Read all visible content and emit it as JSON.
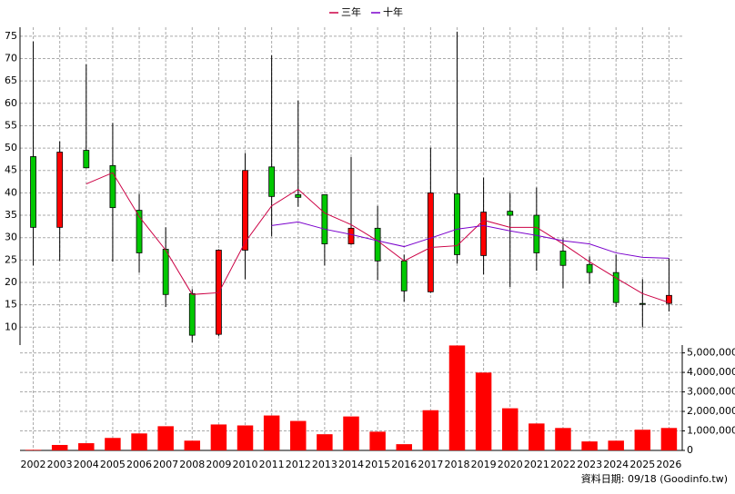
{
  "chart_data": {
    "type": "candlestick",
    "legend": [
      "三年",
      "十年"
    ],
    "categories": [
      "2002",
      "2003",
      "2004",
      "2005",
      "2006",
      "2007",
      "2008",
      "2009",
      "2010",
      "2011",
      "2012",
      "2013",
      "2014",
      "2015",
      "2016",
      "2017",
      "2018",
      "2019",
      "2020",
      "2021",
      "2022",
      "2023",
      "2024",
      "2025",
      "2026"
    ],
    "open": [
      48.1,
      32.3,
      49.5,
      46.1,
      36.1,
      27.4,
      17.5,
      8.4,
      27.2,
      45.8,
      39.6,
      39.6,
      28.6,
      32.1,
      24.8,
      17.9,
      39.8,
      26.0,
      35.9,
      35.0,
      27.0,
      24.0,
      22.2,
      15.3,
      15.3
    ],
    "high": [
      73.8,
      51.5,
      68.7,
      55.6,
      39.8,
      32.3,
      18.5,
      27.4,
      48.9,
      70.7,
      60.6,
      39.6,
      48.0,
      37.1,
      26.2,
      50.1,
      76.0,
      43.4,
      40.0,
      41.2,
      29.9,
      25.8,
      26.2,
      20.7,
      25.4
    ],
    "low": [
      23.8,
      24.8,
      45.5,
      24.6,
      22.2,
      14.5,
      6.6,
      8.0,
      20.7,
      30.3,
      36.9,
      23.8,
      28.4,
      20.5,
      15.7,
      17.7,
      24.2,
      21.8,
      19.0,
      22.6,
      18.7,
      19.7,
      14.5,
      10.0,
      13.5
    ],
    "close": [
      32.3,
      49.1,
      45.6,
      36.7,
      26.6,
      17.3,
      8.2,
      27.2,
      45.0,
      39.2,
      39.0,
      28.6,
      32.1,
      24.8,
      18.1,
      40.0,
      26.2,
      35.7,
      35.0,
      26.6,
      23.8,
      22.2,
      15.5,
      15.1,
      17.1
    ],
    "up_color": "#ff0000",
    "down_color": "#00c800",
    "series": [
      {
        "name": "三年",
        "color": "#cc0044",
        "values": [
          null,
          null,
          42.0,
          44.5,
          34.7,
          27.2,
          17.3,
          17.7,
          29.0,
          37.1,
          40.8,
          35.5,
          32.9,
          29.3,
          24.8,
          27.8,
          28.2,
          33.9,
          32.3,
          32.3,
          28.6,
          24.6,
          21.0,
          17.5,
          15.5
        ]
      },
      {
        "name": "十年",
        "color": "#7a00cc",
        "values": [
          null,
          null,
          null,
          null,
          null,
          null,
          null,
          null,
          null,
          32.7,
          33.5,
          31.9,
          30.7,
          29.3,
          28.0,
          29.9,
          31.9,
          32.7,
          31.5,
          30.5,
          29.3,
          28.6,
          26.6,
          25.6,
          25.4
        ]
      }
    ],
    "ylim": [
      6,
      77
    ],
    "yticks": [
      10,
      15,
      20,
      25,
      30,
      35,
      40,
      45,
      50,
      55,
      60,
      65,
      70,
      75
    ],
    "grid": true,
    "volume": {
      "color": "#ff0000",
      "values": [
        30000,
        280000,
        370000,
        640000,
        870000,
        1240000,
        500000,
        1330000,
        1280000,
        1790000,
        1510000,
        830000,
        1740000,
        960000,
        320000,
        2060000,
        5380000,
        3990000,
        2160000,
        1380000,
        1150000,
        460000,
        500000,
        1060000,
        1150000
      ],
      "ylim": [
        0,
        5400000
      ],
      "yticks": [
        0,
        {
          "value": 1000000,
          "label": "1,000,000"
        },
        {
          "value": 2000000,
          "label": "2,000,000"
        },
        {
          "value": 3000000,
          "label": "3,000,000"
        },
        {
          "value": 4000000,
          "label": "4,000,000"
        },
        {
          "value": 5000000,
          "label": "5,000,000"
        }
      ]
    },
    "footer": "資料日期: 09/18 (Goodinfo.tw)"
  }
}
